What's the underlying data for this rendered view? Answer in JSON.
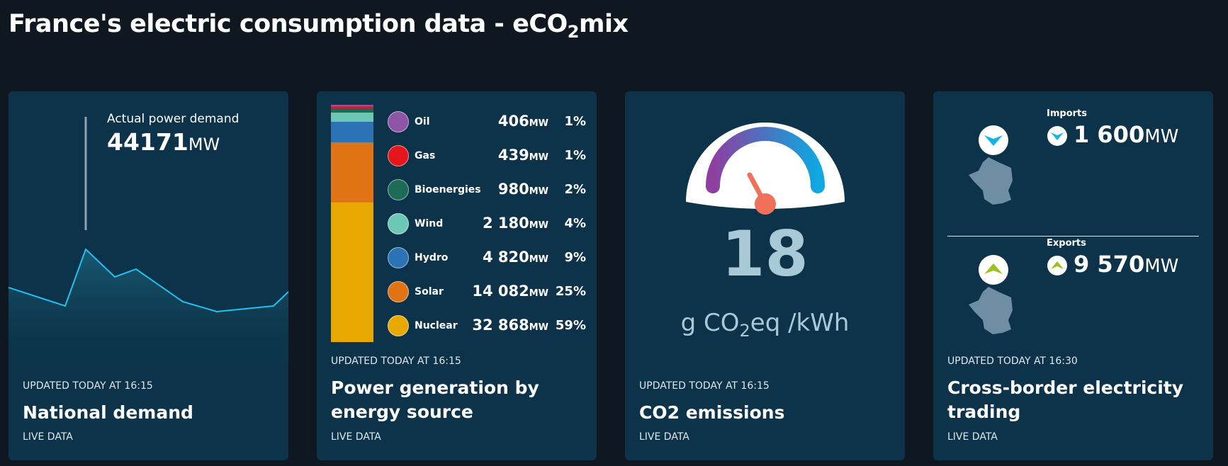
{
  "header": {
    "title_parts": [
      "France's electric consumption data - eCO",
      "2",
      "mix"
    ]
  },
  "cards": [
    {
      "label": "Actual power demand",
      "value": 44171,
      "unit": "MW",
      "updated": "UPDATED TODAY AT 16:15",
      "title": "National demand",
      "footer": "LIVE DATA"
    },
    {
      "sources": [
        {
          "name": "Oil",
          "value": 406,
          "unit": "MW",
          "share": 1,
          "share_label": "1%",
          "color": "#8e55a4"
        },
        {
          "name": "Gas",
          "value": 439,
          "unit": "MW",
          "share": 1,
          "share_label": "1%",
          "color": "#e4161c"
        },
        {
          "name": "Bioenergies",
          "value": 980,
          "unit": "MW",
          "share": 2,
          "share_label": "2%",
          "color": "#1d6b57"
        },
        {
          "name": "Wind",
          "value": 2180,
          "value_label": "2 180",
          "unit": "MW",
          "share": 4,
          "share_label": "4%",
          "color": "#6cc7b5"
        },
        {
          "name": "Hydro",
          "value": 4820,
          "value_label": "4 820",
          "unit": "MW",
          "share": 9,
          "share_label": "9%",
          "color": "#2c73b5"
        },
        {
          "name": "Solar",
          "value": 14082,
          "value_label": "14 082",
          "unit": "MW",
          "share": 25,
          "share_label": "25%",
          "color": "#e07314"
        },
        {
          "name": "Nuclear",
          "value": 32868,
          "value_label": "32 868",
          "unit": "MW",
          "share": 59,
          "share_label": "59%",
          "color": "#e9a800"
        }
      ],
      "updated": "UPDATED TODAY AT 16:15",
      "title": "Power generation by energy source",
      "footer": "LIVE DATA"
    },
    {
      "value": 18,
      "unit_parts": [
        "g CO",
        "2",
        "eq /kWh"
      ],
      "updated": "UPDATED TODAY AT 16:15",
      "title": "CO2 emissions",
      "footer": "LIVE DATA"
    },
    {
      "flows": [
        {
          "label": "Imports",
          "value": 1600,
          "value_label": "1 600",
          "unit": "MW"
        },
        {
          "label": "Exports",
          "value": 9570,
          "value_label": "9 570",
          "unit": "MW"
        }
      ],
      "updated": "UPDATED TODAY AT 16:30",
      "title": "Cross-border electricity trading",
      "footer": "LIVE DATA"
    }
  ]
}
